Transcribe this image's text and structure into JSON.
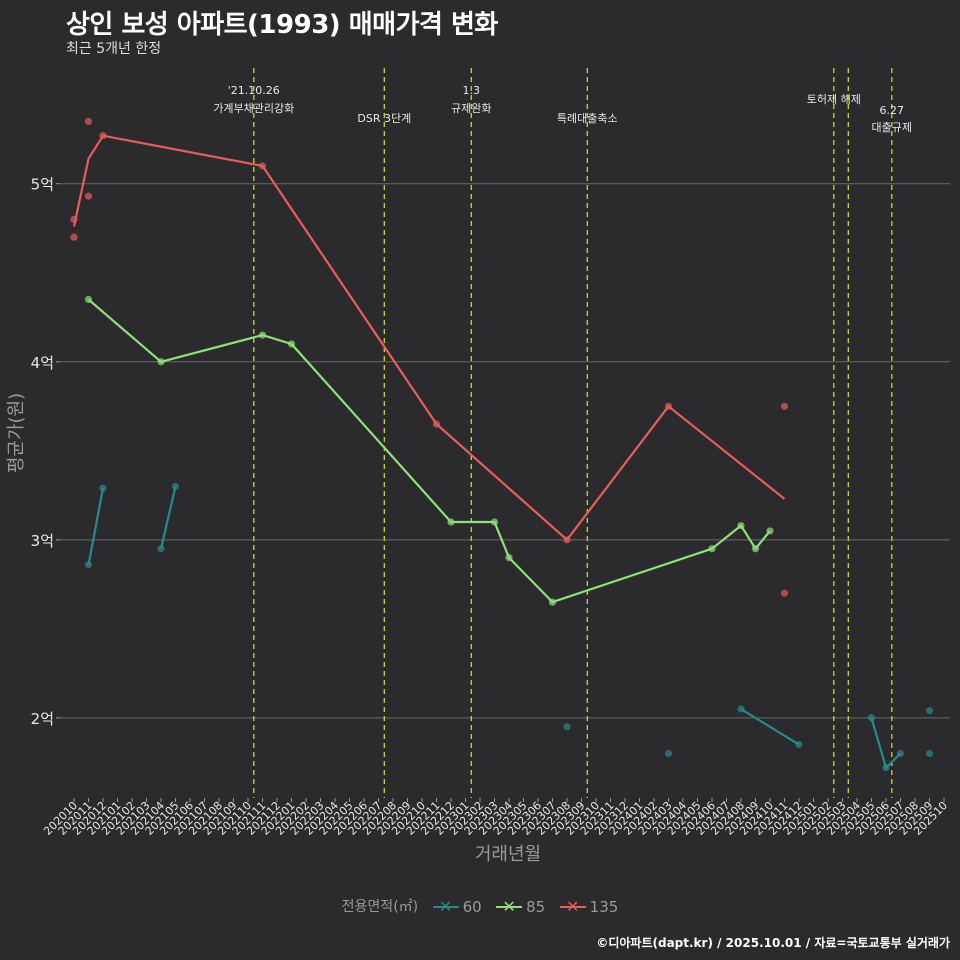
{
  "title": "상인 보성 아파트(1993) 매매가격 변화",
  "subtitle": "최근 5개년 한정",
  "caption": "©디아파트(dapt.kr) / 2025.10.01 / 자료=국토교통부 실거래가",
  "colors": {
    "s60": "#2a8a8a",
    "s85": "#8fe07a",
    "s135": "#e85c5c",
    "vline": "#c8d629",
    "grid": "#6a6a6a",
    "text": "#e8e8e8",
    "axis": "#9a9a9a"
  },
  "chart_data": {
    "type": "line",
    "title": "상인 보성 아파트(1993) 매매가격 변화",
    "xlabel": "거래년월",
    "ylabel": "평균가(원)",
    "ylim": [
      1.55,
      5.65
    ],
    "y_ticks": [
      {
        "v": 2,
        "label": "2억"
      },
      {
        "v": 3,
        "label": "3억"
      },
      {
        "v": 4,
        "label": "4억"
      },
      {
        "v": 5,
        "label": "5억"
      }
    ],
    "x_categories": [
      "202010",
      "202011",
      "202012",
      "202101",
      "202102",
      "202103",
      "202104",
      "202105",
      "202106",
      "202107",
      "202108",
      "202109",
      "202110",
      "202111",
      "202112",
      "202201",
      "202202",
      "202203",
      "202204",
      "202205",
      "202206",
      "202207",
      "202208",
      "202209",
      "202210",
      "202211",
      "202212",
      "202301",
      "202302",
      "202303",
      "202304",
      "202305",
      "202306",
      "202307",
      "202308",
      "202309",
      "202310",
      "202311",
      "202312",
      "202401",
      "202402",
      "202403",
      "202404",
      "202405",
      "202406",
      "202407",
      "202408",
      "202409",
      "202410",
      "202411",
      "202412",
      "202501",
      "202502",
      "202503",
      "202504",
      "202505",
      "202506",
      "202507",
      "202508",
      "202509",
      "202510"
    ],
    "legend_title": "전용면적(㎡)",
    "events": [
      {
        "x": 12.4,
        "line1": "'21.10.26",
        "line2": "가계부채관리강화",
        "level": "high"
      },
      {
        "x": 21.4,
        "line1": "",
        "line2": "DSR 3단계",
        "level": "low"
      },
      {
        "x": 27.4,
        "line1": "1.3",
        "line2": "규제완화",
        "level": "high"
      },
      {
        "x": 35.4,
        "line1": "",
        "line2": "특례대출축소",
        "level": "low"
      },
      {
        "x": 52.4,
        "line1": "",
        "line2": "토허제 해제",
        "level": "mid"
      },
      {
        "x": 53.4,
        "line1": "",
        "line2": "",
        "level": "none"
      },
      {
        "x": 56.4,
        "line1": "6.27",
        "line2": "대출규제",
        "level": "lower"
      }
    ],
    "series": [
      {
        "name": "60",
        "color_key": "s60",
        "line_segments": [
          [
            [
              1,
              2.86
            ],
            [
              2,
              3.29
            ]
          ],
          [
            [
              6,
              2.95
            ],
            [
              7,
              3.3
            ]
          ],
          [
            [
              46,
              2.05
            ],
            [
              50,
              1.85
            ]
          ],
          [
            [
              55,
              2.0
            ],
            [
              56,
              1.72
            ],
            [
              57,
              1.8
            ]
          ]
        ],
        "points": [
          [
            1,
            2.86
          ],
          [
            2,
            3.29
          ],
          [
            6,
            2.95
          ],
          [
            7,
            3.3
          ],
          [
            34,
            1.95
          ],
          [
            41,
            1.8
          ],
          [
            46,
            2.05
          ],
          [
            50,
            1.85
          ],
          [
            55,
            2.0
          ],
          [
            56,
            1.72
          ],
          [
            57,
            1.8
          ],
          [
            59,
            2.04
          ],
          [
            59,
            1.8
          ]
        ]
      },
      {
        "name": "85",
        "color_key": "s85",
        "line_segments": [
          [
            [
              1,
              4.35
            ],
            [
              6,
              4.0
            ],
            [
              13,
              4.15
            ],
            [
              15,
              4.1
            ],
            [
              26,
              3.1
            ],
            [
              29,
              3.1
            ],
            [
              30,
              2.9
            ],
            [
              33,
              2.65
            ],
            [
              44,
              2.95
            ],
            [
              46,
              3.08
            ],
            [
              47,
              2.95
            ],
            [
              48,
              3.05
            ]
          ]
        ],
        "points": [
          [
            1,
            4.35
          ],
          [
            6,
            4.0
          ],
          [
            13,
            4.15
          ],
          [
            15,
            4.1
          ],
          [
            26,
            3.1
          ],
          [
            29,
            3.1
          ],
          [
            30,
            2.9
          ],
          [
            33,
            2.65
          ],
          [
            44,
            2.95
          ],
          [
            46,
            3.08
          ],
          [
            47,
            2.95
          ],
          [
            48,
            3.05
          ]
        ]
      },
      {
        "name": "135",
        "color_key": "s135",
        "line_segments": [
          [
            [
              0,
              4.76
            ],
            [
              1,
              5.14
            ],
            [
              2,
              5.27
            ],
            [
              13,
              5.1
            ],
            [
              25,
              3.65
            ],
            [
              34,
              3.0
            ],
            [
              41,
              3.75
            ],
            [
              49,
              3.23
            ]
          ]
        ],
        "points": [
          [
            0,
            4.8
          ],
          [
            0,
            4.7
          ],
          [
            1,
            5.35
          ],
          [
            1,
            4.93
          ],
          [
            2,
            5.27
          ],
          [
            13,
            5.1
          ],
          [
            25,
            3.65
          ],
          [
            34,
            3.0
          ],
          [
            41,
            3.75
          ],
          [
            49,
            3.75
          ],
          [
            49,
            2.7
          ]
        ]
      }
    ]
  }
}
